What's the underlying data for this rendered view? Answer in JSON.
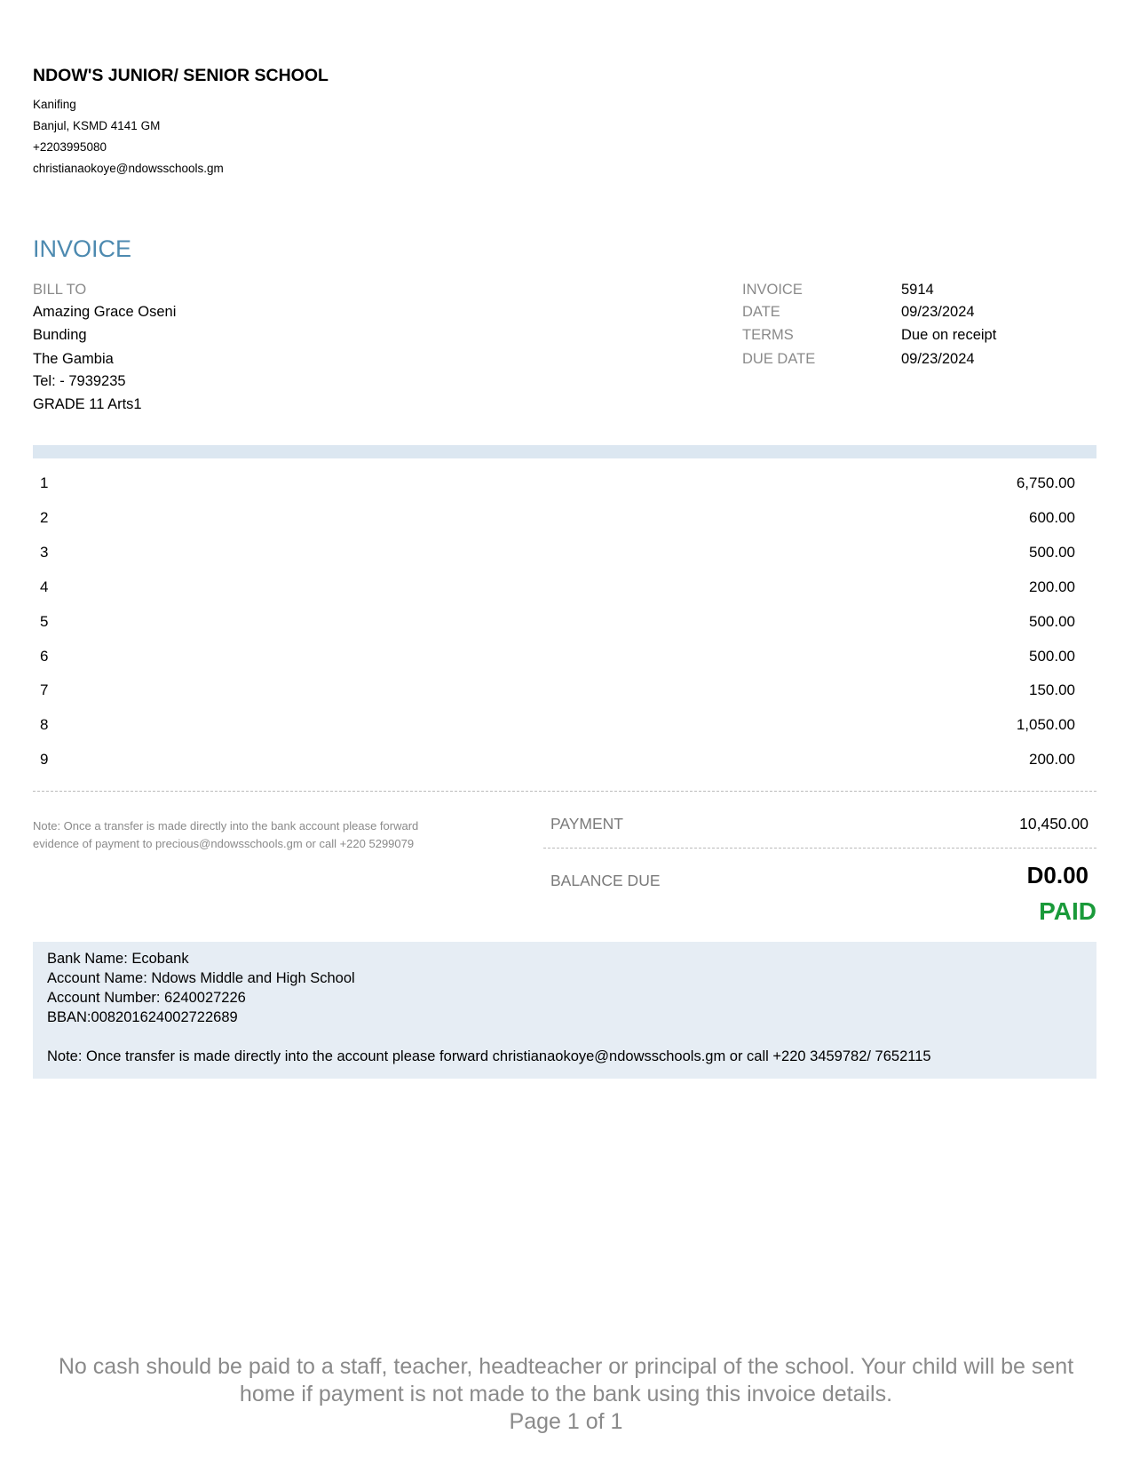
{
  "company": {
    "name": "NDOW'S JUNIOR/ SENIOR SCHOOL",
    "address_lines": [
      "Kanifing",
      "Banjul, KSMD  4141 GM",
      "+2203995080",
      "christianaokoye@ndowsschools.gm"
    ]
  },
  "invoice_title": "INVOICE",
  "bill_to": {
    "label": "BILL TO",
    "lines": [
      "Amazing Grace Oseni",
      "Bunding",
      "The Gambia",
      "Tel: - 7939235",
      "GRADE 11 Arts1"
    ]
  },
  "meta": [
    {
      "label": "INVOICE",
      "value": "5914"
    },
    {
      "label": "DATE",
      "value": "09/23/2024"
    },
    {
      "label": "TERMS",
      "value": "Due on receipt"
    },
    {
      "label": "DUE DATE",
      "value": "09/23/2024"
    }
  ],
  "items": [
    {
      "num": "1",
      "amount": "6,750.00"
    },
    {
      "num": "2",
      "amount": "600.00"
    },
    {
      "num": "3",
      "amount": "500.00"
    },
    {
      "num": "4",
      "amount": "200.00"
    },
    {
      "num": "5",
      "amount": "500.00"
    },
    {
      "num": "6",
      "amount": "500.00"
    },
    {
      "num": "7",
      "amount": "150.00"
    },
    {
      "num": "8",
      "amount": "1,050.00"
    },
    {
      "num": "9",
      "amount": "200.00"
    }
  ],
  "note": [
    "Note: Once a transfer is made directly into the bank account please forward",
    "evidence of payment to precious@ndowsschools.gm or call +220 5299079"
  ],
  "totals": {
    "payment_label": "PAYMENT",
    "payment_value": "10,450.00",
    "balance_label": "BALANCE DUE",
    "balance_value": "D0.00",
    "status": "PAID",
    "status_color": "#1a9a3a"
  },
  "bank": {
    "lines": [
      "Bank Name: Ecobank",
      "Account Name: Ndows Middle and High School",
      "Account Number: 6240027226",
      "BBAN:008201624002722689"
    ],
    "note": "Note: Once transfer is made directly into the account please forward christianaokoye@ndowsschools.gm or call +220 3459782/ 7652115"
  },
  "footer": {
    "lines": [
      "No cash should be paid to a staff, teacher, headteacher or principal of the school. Your child will be sent",
      "home if payment is not made to the bank using this invoice details."
    ],
    "page": "Page 1 of 1"
  }
}
